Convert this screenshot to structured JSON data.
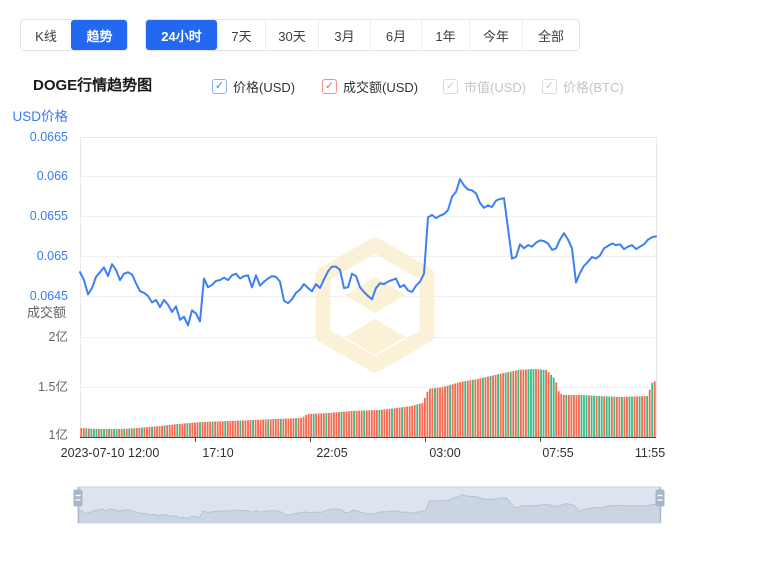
{
  "tabs": {
    "chart_type": [
      {
        "label": "K线",
        "selected": false
      },
      {
        "label": "趋势",
        "selected": true
      }
    ],
    "periods": [
      {
        "label": "24小时",
        "selected": true
      },
      {
        "label": "7天",
        "selected": false
      },
      {
        "label": "30天",
        "selected": false
      },
      {
        "label": "3月",
        "selected": false
      },
      {
        "label": "6月",
        "selected": false
      },
      {
        "label": "1年",
        "selected": false
      },
      {
        "label": "今年",
        "selected": false
      },
      {
        "label": "全部",
        "selected": false
      }
    ]
  },
  "header": {
    "title": "DOGE行情趋势图"
  },
  "legend": [
    {
      "label": "价格(USD)",
      "checked": true,
      "enabled": true,
      "check_glyph": "✓"
    },
    {
      "label": "成交额(USD)",
      "checked": true,
      "enabled": true,
      "check_glyph": "✓"
    },
    {
      "label": "市值(USD)",
      "checked": true,
      "enabled": false,
      "check_glyph": "✓"
    },
    {
      "label": "价格(BTC)",
      "checked": true,
      "enabled": false,
      "check_glyph": "✓"
    }
  ],
  "chart_data": {
    "type": "line+bar",
    "title": "DOGE行情趋势图",
    "price_axis": {
      "title": "USD价格",
      "ticks": [
        "0.0665",
        "0.066",
        "0.0655",
        "0.065",
        "0.0645"
      ],
      "max": 0.0665,
      "tick_step": 0.0005
    },
    "volume_axis": {
      "title": "成交额",
      "ticks": [
        "2亿",
        "1.5亿",
        "1亿"
      ],
      "unit": "亿"
    },
    "x_axis": {
      "labels": [
        "2023-07-10 12:00",
        "17:10",
        "22:05",
        "03:00",
        "07:55",
        "11:55"
      ],
      "range": "24小时"
    },
    "price_series": [
      0.0648,
      0.0647,
      0.06452,
      0.0646,
      0.06474,
      0.0648,
      0.06486,
      0.06475,
      0.0649,
      0.06483,
      0.0647,
      0.06478,
      0.0648,
      0.06477,
      0.06466,
      0.06456,
      0.06454,
      0.0645,
      0.06442,
      0.06445,
      0.06436,
      0.06445,
      0.06439,
      0.0643,
      0.06437,
      0.0642,
      0.06424,
      0.06413,
      0.06432,
      0.06428,
      0.06418,
      0.06472,
      0.06461,
      0.06464,
      0.06469,
      0.0647,
      0.06473,
      0.0647,
      0.06476,
      0.06478,
      0.06472,
      0.06475,
      0.06476,
      0.06461,
      0.06476,
      0.06463,
      0.06468,
      0.06472,
      0.06475,
      0.06474,
      0.06468,
      0.06444,
      0.06441,
      0.06446,
      0.06454,
      0.06458,
      0.06465,
      0.0646,
      0.06456,
      0.06465,
      0.0646,
      0.06471,
      0.06481,
      0.06487,
      0.06487,
      0.06483,
      0.0646,
      0.06461,
      0.06478,
      0.06475,
      0.06461,
      0.06455,
      0.0645,
      0.06446,
      0.0646,
      0.06466,
      0.06465,
      0.06468,
      0.0647,
      0.06472,
      0.06461,
      0.06464,
      0.06457,
      0.06455,
      0.06463,
      0.06468,
      0.06478,
      0.06549,
      0.06552,
      0.06548,
      0.06551,
      0.06553,
      0.06558,
      0.06575,
      0.06581,
      0.06597,
      0.06589,
      0.06584,
      0.06583,
      0.06579,
      0.06567,
      0.06561,
      0.06564,
      0.06562,
      0.0657,
      0.06572,
      0.06573,
      0.06535,
      0.06497,
      0.06499,
      0.06515,
      0.0651,
      0.06514,
      0.06512,
      0.06517,
      0.0652,
      0.06519,
      0.06516,
      0.06508,
      0.0651,
      0.06521,
      0.06529,
      0.06521,
      0.0651,
      0.06467,
      0.06479,
      0.06488,
      0.06493,
      0.06499,
      0.06497,
      0.06501,
      0.0651,
      0.06513,
      0.06516,
      0.06514,
      0.06515,
      0.06509,
      0.06512,
      0.06514,
      0.06509,
      0.06512,
      0.06515,
      0.06521,
      0.06524,
      0.06525
    ],
    "volume_profile": [
      [
        0,
        1.09
      ],
      [
        0.03,
        1.08
      ],
      [
        0.07,
        1.08
      ],
      [
        0.1,
        1.09
      ],
      [
        0.14,
        1.11
      ],
      [
        0.17,
        1.13
      ],
      [
        0.21,
        1.15
      ],
      [
        0.26,
        1.16
      ],
      [
        0.3,
        1.17
      ],
      [
        0.34,
        1.18
      ],
      [
        0.385,
        1.19
      ],
      [
        0.395,
        1.23
      ],
      [
        0.43,
        1.24
      ],
      [
        0.47,
        1.26
      ],
      [
        0.52,
        1.27
      ],
      [
        0.55,
        1.29
      ],
      [
        0.575,
        1.31
      ],
      [
        0.595,
        1.34
      ],
      [
        0.605,
        1.48
      ],
      [
        0.63,
        1.5
      ],
      [
        0.66,
        1.55
      ],
      [
        0.69,
        1.58
      ],
      [
        0.72,
        1.62
      ],
      [
        0.76,
        1.67
      ],
      [
        0.79,
        1.68
      ],
      [
        0.81,
        1.67
      ],
      [
        0.825,
        1.58
      ],
      [
        0.832,
        1.44
      ],
      [
        0.84,
        1.42
      ],
      [
        0.87,
        1.42
      ],
      [
        0.9,
        1.41
      ],
      [
        0.94,
        1.4
      ],
      [
        0.985,
        1.41
      ],
      [
        0.994,
        1.55
      ],
      [
        1.0,
        1.56
      ]
    ],
    "volume_bars": {
      "count": 228,
      "green_indices": [
        2,
        4,
        5,
        6,
        8,
        9,
        11,
        13,
        14,
        17,
        19,
        21,
        24,
        28,
        33,
        38,
        42,
        47,
        52,
        57,
        63,
        68,
        74,
        79,
        85,
        92,
        97,
        103,
        108,
        112,
        118,
        123,
        127,
        133,
        140,
        146,
        152,
        155,
        159,
        162,
        165,
        168,
        170,
        173,
        177,
        178,
        179,
        182,
        183,
        186,
        187,
        192,
        198,
        199,
        200,
        202,
        203,
        205,
        206,
        208,
        209,
        211,
        214,
        217,
        218,
        221,
        224,
        226
      ]
    },
    "colors": {
      "line_blue": "#3d7ff5",
      "bar_red": "#f4694f",
      "bar_green": "#36bc87",
      "axis_blue": "#3a7cf0",
      "axis_gray": "#5f6368",
      "x_label": "#2e3033",
      "tab_blue": "#2368f0",
      "watermark": "#faf1d5",
      "nav_bg": "#dde4ef",
      "nav_area": "#cbd4e3",
      "nav_line": "#b7c2d5",
      "nav_handle": "#a9b6ca"
    },
    "legend_position": "top",
    "grid": true
  }
}
